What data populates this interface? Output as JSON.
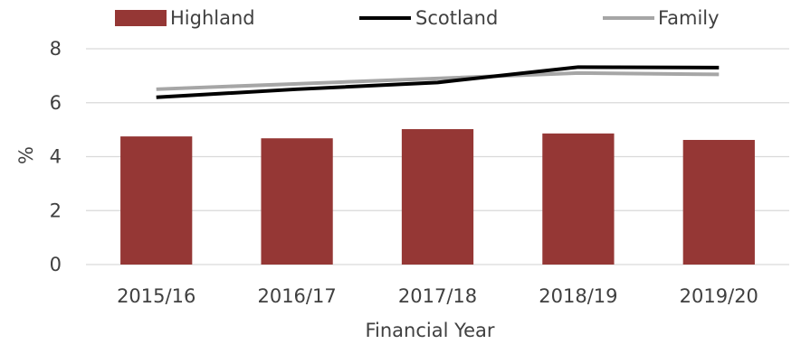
{
  "chart_data": {
    "type": "bar",
    "title": "",
    "xlabel": "Financial Year",
    "ylabel": "%",
    "ylim": [
      0,
      8
    ],
    "yticks": [
      0,
      2,
      4,
      6,
      8
    ],
    "grid": "horizontal",
    "legend_position": "top",
    "categories": [
      "2015/16",
      "2016/17",
      "2017/18",
      "2018/19",
      "2019/20"
    ],
    "series": [
      {
        "name": "Highland",
        "type": "bar",
        "color": "#953735",
        "values": [
          4.75,
          4.68,
          5.02,
          4.86,
          4.62
        ]
      },
      {
        "name": "Scotland",
        "type": "line",
        "color": "#000000",
        "values": [
          6.2,
          6.5,
          6.75,
          7.32,
          7.3
        ]
      },
      {
        "name": "Family",
        "type": "line",
        "color": "#a6a6a6",
        "values": [
          6.5,
          6.7,
          6.9,
          7.1,
          7.05
        ]
      }
    ]
  }
}
